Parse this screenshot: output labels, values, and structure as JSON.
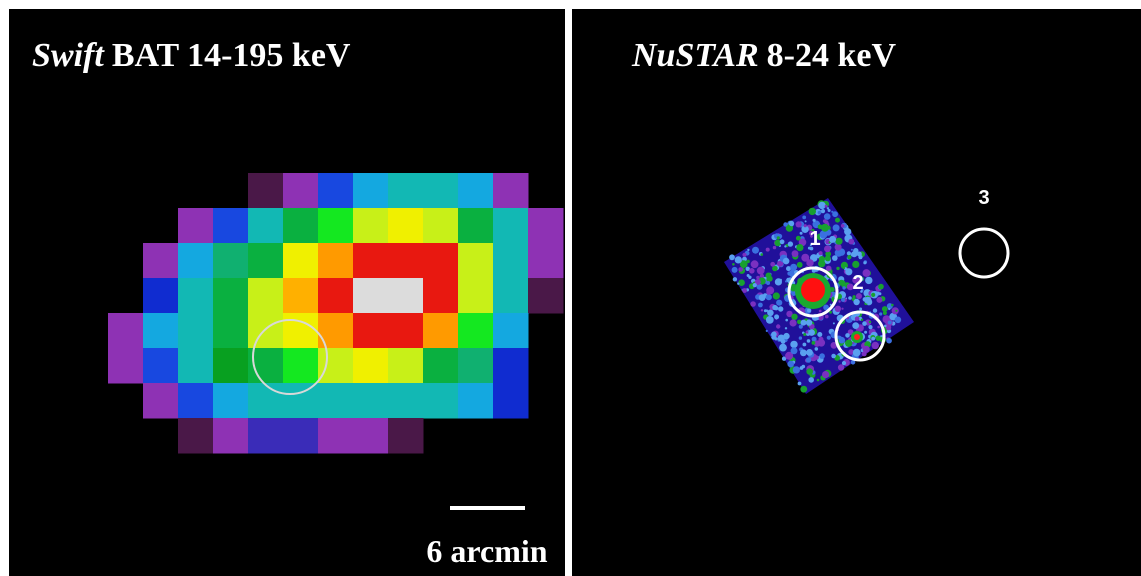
{
  "panels": [
    {
      "title_italic": "Swift",
      "title_rest": "BAT  14-195 keV",
      "scale_label": "6 arcmin"
    },
    {
      "title_italic": "NuSTAR",
      "title_rest": "8-24 keV",
      "sources": [
        "1",
        "2",
        "3"
      ]
    }
  ]
}
